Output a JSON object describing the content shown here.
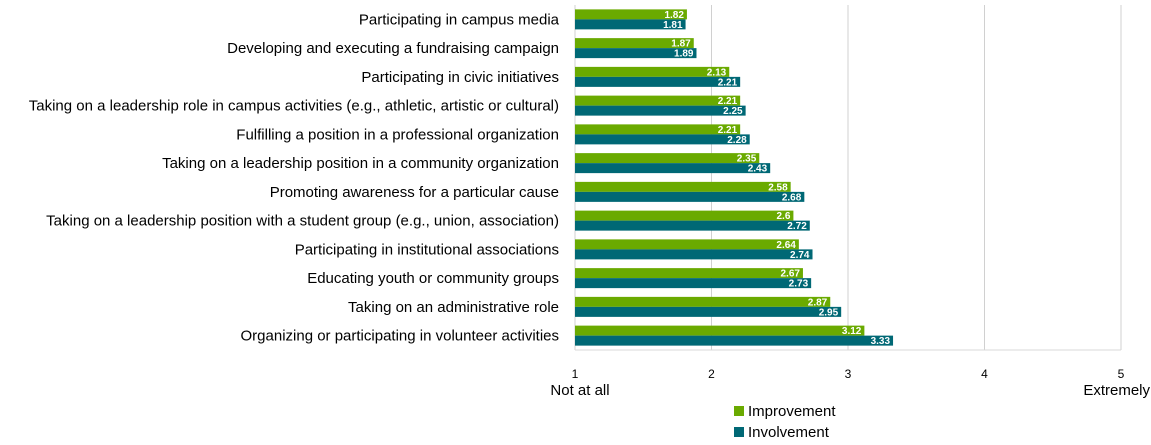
{
  "chart_data": {
    "type": "bar",
    "orientation": "horizontal",
    "title": "",
    "xlabel": "",
    "ylabel": "",
    "xlim": [
      1,
      5
    ],
    "x_ticks": [
      "1",
      "2",
      "3",
      "4",
      "5"
    ],
    "x_anchor_labels": {
      "low": "Not at all",
      "high": "Extremely"
    },
    "grid": true,
    "legend_position": "bottom",
    "categories": [
      "Participating in campus media",
      "Developing and executing a fundraising campaign",
      "Participating in civic initiatives",
      "Taking on a leadership role in campus activities (e.g., athletic, artistic or cultural)",
      "Fulfilling a position in a professional organization",
      "Taking on a leadership position in a community organization",
      "Promoting awareness for a particular cause",
      "Taking on a leadership position with a student group (e.g., union, association)",
      "Participating in institutional associations",
      "Educating youth or community groups",
      "Taking on an administrative role",
      "Organizing or participating in volunteer activities"
    ],
    "series": [
      {
        "name": "Improvement",
        "color": "#6aaa00",
        "values": [
          1.82,
          1.87,
          2.13,
          2.21,
          2.21,
          2.35,
          2.58,
          2.6,
          2.64,
          2.67,
          2.87,
          3.12
        ],
        "labels": [
          "1.82",
          "1.87",
          "2.13",
          "2.21",
          "2.21",
          "2.35",
          "2.58",
          "2.6",
          "2.64",
          "2.67",
          "2.87",
          "3.12"
        ]
      },
      {
        "name": "Involvement",
        "color": "#006875",
        "values": [
          1.81,
          1.89,
          2.21,
          2.25,
          2.28,
          2.43,
          2.68,
          2.72,
          2.74,
          2.73,
          2.95,
          3.33
        ],
        "labels": [
          "1.81",
          "1.89",
          "2.21",
          "2.25",
          "2.28",
          "2.43",
          "2.68",
          "2.72",
          "2.74",
          "2.73",
          "2.95",
          "3.33"
        ]
      }
    ]
  }
}
